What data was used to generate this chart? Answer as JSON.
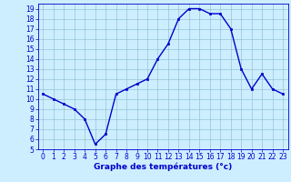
{
  "hours": [
    0,
    1,
    2,
    3,
    4,
    5,
    6,
    7,
    8,
    9,
    10,
    11,
    12,
    13,
    14,
    15,
    16,
    17,
    18,
    19,
    20,
    21,
    22,
    23
  ],
  "temps": [
    10.5,
    10.0,
    9.5,
    9.0,
    8.0,
    5.5,
    6.5,
    10.5,
    11.0,
    11.5,
    12.0,
    14.0,
    15.5,
    18.0,
    19.0,
    19.0,
    18.5,
    18.5,
    17.0,
    13.0,
    11.0,
    12.5,
    11.0,
    10.5
  ],
  "xlim": [
    -0.5,
    23.5
  ],
  "ylim": [
    5,
    19.5
  ],
  "yticks": [
    5,
    6,
    7,
    8,
    9,
    10,
    11,
    12,
    13,
    14,
    15,
    16,
    17,
    18,
    19
  ],
  "xticks": [
    0,
    1,
    2,
    3,
    4,
    5,
    6,
    7,
    8,
    9,
    10,
    11,
    12,
    13,
    14,
    15,
    16,
    17,
    18,
    19,
    20,
    21,
    22,
    23
  ],
  "xlabel": "Graphe des températures (°c)",
  "line_color": "#0000cc",
  "marker": "s",
  "marker_size": 2.0,
  "bg_color": "#cceeff",
  "grid_color": "#88bbcc",
  "tick_label_fontsize": 5.5,
  "xlabel_fontsize": 6.5,
  "linewidth": 1.0
}
